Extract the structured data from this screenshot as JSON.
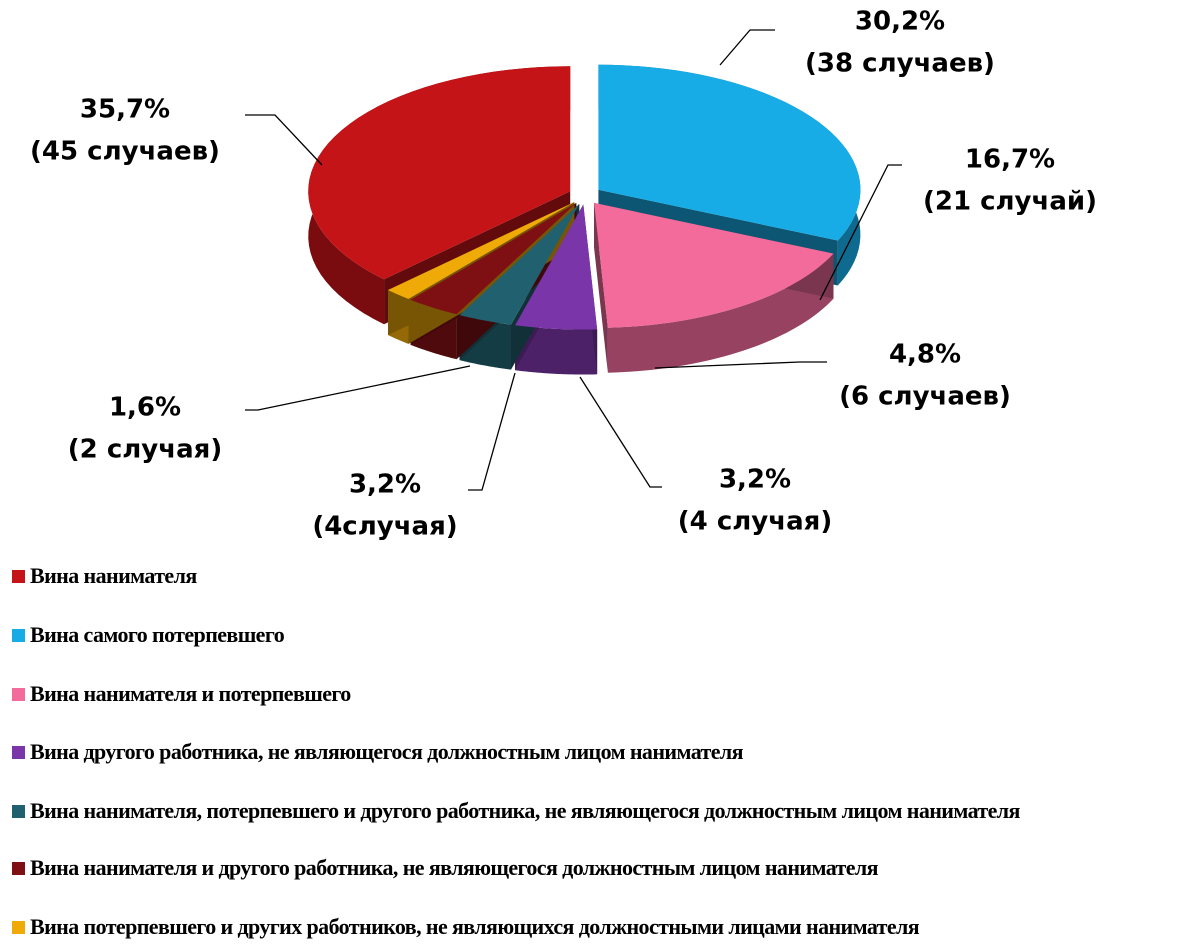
{
  "chart_data": {
    "type": "pie",
    "categories": [
      "Вина нанимателя",
      "Вина самого потерпевшего",
      "Вина нанимателя и потерпевшего",
      "Вина другого работника, не являющегося должностным лицом нанимателя",
      "Вина нанимателя, потерпевшего и другого работника, не являющегося должностным лицом нанимателя",
      "Вина нанимателя и другого работника, не являющегося должностным лицом нанимателя",
      "Вина потерпевшего и других работников, не являющихся должностными лицами нанимателя"
    ],
    "values": [
      35.7,
      30.2,
      16.7,
      4.8,
      3.2,
      3.2,
      1.6
    ],
    "value_labels": [
      "35,7%",
      "30,2%",
      "16,7%",
      "4,8%",
      "3,2%",
      "3,2%",
      "1,6%"
    ],
    "case_labels": [
      "(45 случаев)",
      "(38 случаев)",
      "(21 случай)",
      "(6 случаев)",
      "(4 случая)",
      "(4случая)",
      "(2 случая)"
    ],
    "colors": [
      "#c41418",
      "#17ace6",
      "#f26b9b",
      "#7a35a8",
      "#21606e",
      "#7e1014",
      "#f0aa08"
    ]
  }
}
